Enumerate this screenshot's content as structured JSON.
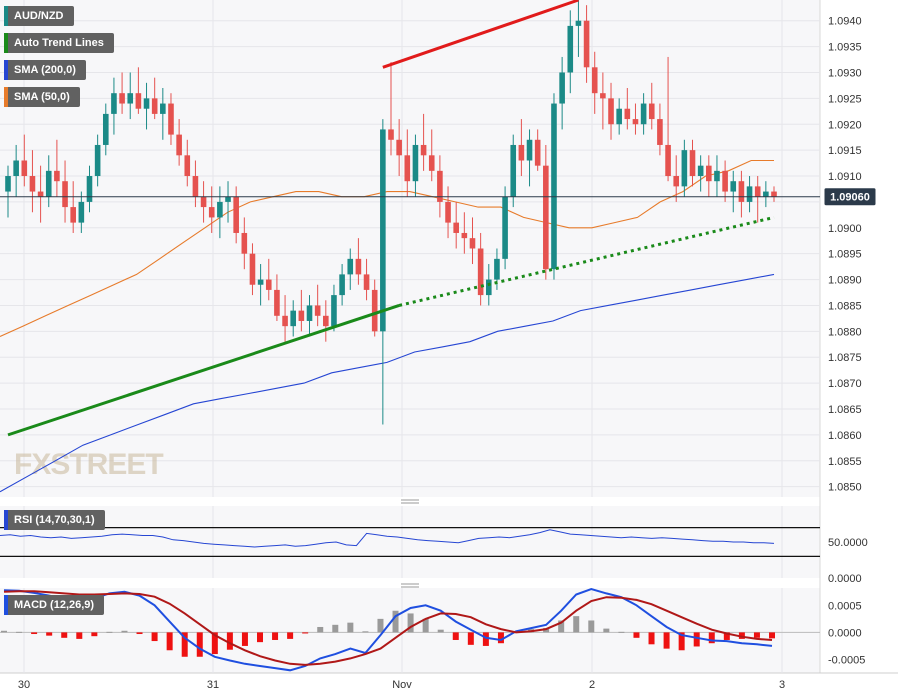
{
  "legend": {
    "symbol": "AUD/NZD",
    "trend": "Auto Trend Lines",
    "sma200": "SMA (200,0)",
    "sma50": "SMA (50,0)",
    "rsi": "RSI (14,70,30,1)",
    "macd": "MACD (12,26,9)"
  },
  "watermark": "FXSTREET",
  "price_badge": "1.09060",
  "colors": {
    "up": "#1b8a87",
    "down": "#e5524f",
    "sma200": "#2646d3",
    "sma50": "#e77b2b",
    "trend_up": "#1a8a1a",
    "trend_down": "#e11b1b",
    "macd_line": "#1f4fe0",
    "signal_line": "#b01818",
    "hist_pos": "#9a9a9a",
    "hist_neg": "#ee1111",
    "badge_bg": "#2b3a4a"
  },
  "chart_data": [
    {
      "type": "candlestick",
      "title": "AUD/NZD",
      "x_ticks": [
        "30",
        "31",
        "Nov",
        "2",
        "3"
      ],
      "y_ticks": [
        "1.0850",
        "1.0855",
        "1.0860",
        "1.0865",
        "1.0870",
        "1.0875",
        "1.0880",
        "1.0885",
        "1.0890",
        "1.0895",
        "1.0900",
        "1.0905",
        "1.0910",
        "1.0915",
        "1.0920",
        "1.0925",
        "1.0930",
        "1.0935",
        "1.0940"
      ],
      "ylim": [
        1.0848,
        1.0944
      ],
      "last_price": 1.0906,
      "candles": [
        [
          1.0907,
          1.0912,
          1.0902,
          1.091
        ],
        [
          1.091,
          1.0916,
          1.0906,
          1.0913
        ],
        [
          1.0913,
          1.0918,
          1.0908,
          1.091
        ],
        [
          1.091,
          1.0915,
          1.0903,
          1.0907
        ],
        [
          1.0907,
          1.0912,
          1.0901,
          1.0906
        ],
        [
          1.0906,
          1.0914,
          1.0904,
          1.0911
        ],
        [
          1.0911,
          1.0917,
          1.0906,
          1.0909
        ],
        [
          1.0909,
          1.0913,
          1.0901,
          1.0904
        ],
        [
          1.0904,
          1.0909,
          1.0899,
          1.0901
        ],
        [
          1.0901,
          1.0907,
          1.0899,
          1.0905
        ],
        [
          1.0905,
          1.0912,
          1.0903,
          1.091
        ],
        [
          1.091,
          1.0918,
          1.0908,
          1.0916
        ],
        [
          1.0916,
          1.0924,
          1.0914,
          1.0922
        ],
        [
          1.0922,
          1.0929,
          1.0918,
          1.0926
        ],
        [
          1.0926,
          1.093,
          1.0922,
          1.0924
        ],
        [
          1.0924,
          1.093,
          1.0921,
          1.0926
        ],
        [
          1.0926,
          1.0931,
          1.0922,
          1.0923
        ],
        [
          1.0923,
          1.0928,
          1.0919,
          1.0925
        ],
        [
          1.0925,
          1.0929,
          1.0921,
          1.0922
        ],
        [
          1.0922,
          1.0927,
          1.0917,
          1.0924
        ],
        [
          1.0924,
          1.0926,
          1.0916,
          1.0918
        ],
        [
          1.0918,
          1.0921,
          1.0912,
          1.0914
        ],
        [
          1.0914,
          1.0917,
          1.0908,
          1.091
        ],
        [
          1.091,
          1.0913,
          1.0904,
          1.0906
        ],
        [
          1.0906,
          1.0909,
          1.0901,
          1.0904
        ],
        [
          1.0904,
          1.0908,
          1.0899,
          1.0902
        ],
        [
          1.0902,
          1.0908,
          1.0898,
          1.0905
        ],
        [
          1.0905,
          1.0909,
          1.0901,
          1.0906
        ],
        [
          1.0906,
          1.0908,
          1.0897,
          1.0899
        ],
        [
          1.0899,
          1.0902,
          1.0892,
          1.0895
        ],
        [
          1.0895,
          1.0897,
          1.0887,
          1.0889
        ],
        [
          1.0889,
          1.0893,
          1.0885,
          1.089
        ],
        [
          1.089,
          1.0894,
          1.0886,
          1.0888
        ],
        [
          1.0888,
          1.0891,
          1.0882,
          1.0883
        ],
        [
          1.0883,
          1.0887,
          1.0878,
          1.0881
        ],
        [
          1.0881,
          1.0886,
          1.0879,
          1.0884
        ],
        [
          1.0884,
          1.0888,
          1.088,
          1.0882
        ],
        [
          1.0882,
          1.0887,
          1.0879,
          1.0885
        ],
        [
          1.0885,
          1.0889,
          1.0881,
          1.0883
        ],
        [
          1.0883,
          1.0886,
          1.0878,
          1.0881
        ],
        [
          1.0881,
          1.0889,
          1.088,
          1.0887
        ],
        [
          1.0887,
          1.0893,
          1.0885,
          1.0891
        ],
        [
          1.0891,
          1.0896,
          1.0888,
          1.0894
        ],
        [
          1.0894,
          1.0898,
          1.0889,
          1.0891
        ],
        [
          1.0891,
          1.0894,
          1.0886,
          1.0888
        ],
        [
          1.0888,
          1.089,
          1.0879,
          1.088
        ],
        [
          1.088,
          1.0921,
          1.0862,
          1.0919
        ],
        [
          1.0919,
          1.0932,
          1.0914,
          1.0917
        ],
        [
          1.0917,
          1.0921,
          1.091,
          1.0914
        ],
        [
          1.0914,
          1.0919,
          1.0906,
          1.0909
        ],
        [
          1.0909,
          1.0918,
          1.0906,
          1.0916
        ],
        [
          1.0916,
          1.0922,
          1.0911,
          1.0914
        ],
        [
          1.0914,
          1.0919,
          1.0909,
          1.0911
        ],
        [
          1.0911,
          1.0914,
          1.0902,
          1.0905
        ],
        [
          1.0905,
          1.0908,
          1.0898,
          1.0901
        ],
        [
          1.0901,
          1.0905,
          1.0896,
          1.0899
        ],
        [
          1.0899,
          1.0903,
          1.0895,
          1.0898
        ],
        [
          1.0898,
          1.0902,
          1.0893,
          1.0896
        ],
        [
          1.0896,
          1.0899,
          1.0885,
          1.0887
        ],
        [
          1.0887,
          1.0893,
          1.0885,
          1.089
        ],
        [
          1.089,
          1.0896,
          1.0888,
          1.0894
        ],
        [
          1.0894,
          1.0908,
          1.0892,
          1.0906
        ],
        [
          1.0906,
          1.0918,
          1.0904,
          1.0916
        ],
        [
          1.0916,
          1.0921,
          1.091,
          1.0913
        ],
        [
          1.0913,
          1.0919,
          1.0908,
          1.0917
        ],
        [
          1.0917,
          1.0919,
          1.0911,
          1.0912
        ],
        [
          1.0912,
          1.0916,
          1.089,
          1.0892
        ],
        [
          1.0892,
          1.0926,
          1.089,
          1.0924
        ],
        [
          1.0924,
          1.0933,
          1.0919,
          1.093
        ],
        [
          1.093,
          1.0942,
          1.0926,
          1.0939
        ],
        [
          1.0939,
          1.0944,
          1.0933,
          1.094
        ],
        [
          1.094,
          1.0943,
          1.0928,
          1.0931
        ],
        [
          1.0931,
          1.0934,
          1.0922,
          1.0926
        ],
        [
          1.0926,
          1.093,
          1.0919,
          1.0925
        ],
        [
          1.0925,
          1.0928,
          1.0917,
          1.092
        ],
        [
          1.092,
          1.0925,
          1.0918,
          1.0923
        ],
        [
          1.0923,
          1.0927,
          1.0919,
          1.0921
        ],
        [
          1.0921,
          1.0924,
          1.0918,
          1.092
        ],
        [
          1.092,
          1.0926,
          1.0918,
          1.0924
        ],
        [
          1.0924,
          1.0928,
          1.0919,
          1.0921
        ],
        [
          1.0921,
          1.0924,
          1.0914,
          1.0916
        ],
        [
          1.0916,
          1.0933,
          1.0909,
          1.091
        ],
        [
          1.091,
          1.0914,
          1.0905,
          1.0908
        ],
        [
          1.0908,
          1.0917,
          1.0906,
          1.0915
        ],
        [
          1.0915,
          1.0917,
          1.0908,
          1.091
        ],
        [
          1.091,
          1.0914,
          1.0907,
          1.0912
        ],
        [
          1.0912,
          1.0914,
          1.0906,
          1.0909
        ],
        [
          1.0909,
          1.0914,
          1.0906,
          1.0911
        ],
        [
          1.0911,
          1.0913,
          1.0905,
          1.0907
        ],
        [
          1.0907,
          1.0911,
          1.0903,
          1.0909
        ],
        [
          1.0909,
          1.0911,
          1.0902,
          1.0905
        ],
        [
          1.0905,
          1.091,
          1.0903,
          1.0908
        ],
        [
          1.0908,
          1.091,
          1.0901,
          1.0906
        ],
        [
          1.0906,
          1.0909,
          1.0904,
          1.0907
        ],
        [
          1.0907,
          1.0908,
          1.0905,
          1.0906
        ]
      ],
      "sma50": [
        1.0879,
        1.0881,
        1.0883,
        1.0885,
        1.0887,
        1.0889,
        1.0891,
        1.0894,
        1.0897,
        1.09,
        1.0903,
        1.0905,
        1.0906,
        1.0907,
        1.0907,
        1.0906,
        1.0906,
        1.0907,
        1.0907,
        1.0906,
        1.0905,
        1.0904,
        1.0904,
        1.0902,
        1.0901,
        1.09,
        1.09,
        1.0901,
        1.0902,
        1.0905,
        1.0907,
        1.091,
        1.0911,
        1.0913,
        1.0913
      ],
      "sma200": [
        1.0849,
        1.0852,
        1.0855,
        1.0858,
        1.086,
        1.0862,
        1.0864,
        1.0866,
        1.0867,
        1.0868,
        1.0869,
        1.087,
        1.0872,
        1.0873,
        1.0874,
        1.0876,
        1.0877,
        1.0878,
        1.088,
        1.0881,
        1.0882,
        1.0884,
        1.0885,
        1.0886,
        1.0887,
        1.0888,
        1.0889,
        1.089,
        1.0891
      ],
      "trend_lines": [
        {
          "kind": "support",
          "from": [
            0,
            1.086
          ],
          "to": [
            48,
            1.0885
          ],
          "extended_to": [
            94,
            1.0902
          ]
        },
        {
          "kind": "resistance",
          "from": [
            46,
            1.0931
          ],
          "to": [
            70,
            1.0944
          ]
        }
      ]
    },
    {
      "type": "line",
      "title": "RSI (14,70,30,1)",
      "y_ticks": [
        "0.0000",
        "50.0000"
      ],
      "ylim": [
        0,
        100
      ],
      "levels": [
        70,
        30
      ],
      "values": [
        59,
        60,
        58,
        59,
        57,
        56,
        57,
        55,
        56,
        57,
        58,
        60,
        61,
        60,
        59,
        59,
        57,
        53,
        52,
        50,
        48,
        47,
        46,
        45,
        44,
        43,
        44,
        45,
        46,
        44,
        45,
        47,
        49,
        50,
        46,
        45,
        62,
        60,
        58,
        57,
        55,
        53,
        52,
        51,
        50,
        49,
        52,
        55,
        56,
        57,
        56,
        58,
        60,
        63,
        67,
        64,
        61,
        60,
        59,
        58,
        57,
        56,
        57,
        56,
        55,
        56,
        55,
        54,
        53,
        52,
        51,
        51,
        50,
        50,
        49,
        49,
        48
      ],
      "series": [
        {
          "name": "RSI",
          "color": "#2646d3"
        }
      ]
    },
    {
      "type": "line+bar",
      "title": "MACD (12,26,9)",
      "y_ticks": [
        "0.0005",
        "0.0000",
        "-0.0005"
      ],
      "ylim": [
        -0.00075,
        0.00082
      ],
      "macd": [
        0.00078,
        0.00077,
        0.00073,
        0.00068,
        0.00062,
        0.00058,
        0.00063,
        0.00072,
        0.00075,
        0.00068,
        0.0005,
        0.0002,
        -0.0001,
        -0.0003,
        -0.00045,
        -0.00052,
        -0.00058,
        -0.00062,
        -0.00066,
        -0.0007,
        -0.00062,
        -0.00048,
        -0.0004,
        -0.0003,
        -0.00038,
        -5e-05,
        0.0003,
        0.00045,
        0.0005,
        0.0004,
        0.0002,
        5e-05,
        -0.0001,
        -0.00014,
        2e-05,
        8e-05,
        0.00014,
        0.0004,
        0.0007,
        0.0008,
        0.00072,
        0.00065,
        0.0005,
        0.0003,
        0.0001,
        -5e-05,
        -0.0001,
        -0.00015,
        -0.00016,
        -0.0002,
        -0.00022,
        -0.00025
      ],
      "signal": [
        0.00075,
        0.00076,
        0.00076,
        0.00074,
        0.00072,
        0.0007,
        0.0007,
        0.00071,
        0.00072,
        0.00071,
        0.00066,
        0.00053,
        0.00035,
        0.00015,
        -5e-05,
        -0.0002,
        -0.00033,
        -0.00044,
        -0.00052,
        -0.00058,
        -0.0006,
        -0.00058,
        -0.00054,
        -0.00048,
        -0.0004,
        -0.0003,
        -0.0001,
        0.0001,
        0.00025,
        0.00035,
        0.00034,
        0.00028,
        0.00015,
        6e-05,
        0.0,
        2e-05,
        6e-05,
        0.00018,
        0.0004,
        0.00058,
        0.00065,
        0.00064,
        0.0006,
        0.00052,
        0.0004,
        0.00028,
        0.00016,
        5e-05,
        -2e-05,
        -8e-05,
        -0.00012,
        -0.00014
      ],
      "series": [
        {
          "name": "MACD",
          "color": "#1f4fe0"
        },
        {
          "name": "Signal",
          "color": "#b01818"
        }
      ]
    }
  ]
}
